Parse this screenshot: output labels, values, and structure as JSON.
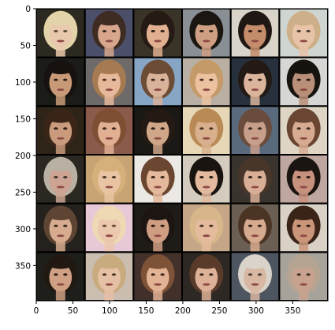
{
  "figure": {
    "kind": "image-grid-plot",
    "description_visible": false
  },
  "grid": {
    "rows": 6,
    "cols": 6,
    "separator_color": "#000000"
  },
  "axes": {
    "x_ticks": [
      "0",
      "50",
      "100",
      "150",
      "200",
      "250",
      "300",
      "350"
    ],
    "y_ticks": [
      "0",
      "50",
      "100",
      "150",
      "200",
      "250",
      "300",
      "350"
    ],
    "x_tick_values": [
      0,
      50,
      100,
      150,
      200,
      250,
      300,
      350
    ],
    "y_tick_values": [
      0,
      50,
      100,
      150,
      200,
      250,
      300,
      350
    ],
    "x_range": [
      0,
      398
    ],
    "y_range": [
      0,
      398
    ]
  },
  "tiles": [
    {
      "bg": "#2c2a20",
      "skin": "#e9c9ad",
      "hair": "#e2d3a8",
      "eye": "#5a4635"
    },
    {
      "bg": "#4b4f6a",
      "skin": "#d7a68c",
      "hair": "#3e2b22",
      "eye": "#3b2a22"
    },
    {
      "bg": "#3a3327",
      "skin": "#e0b090",
      "hair": "#251a14",
      "eye": "#2b1d15"
    },
    {
      "bg": "#8a8f95",
      "skin": "#cf9f83",
      "hair": "#1c1612",
      "eye": "#2a1e18"
    },
    {
      "bg": "#d8d4c9",
      "skin": "#c58c6c",
      "hair": "#1e1713",
      "eye": "#2a1a12"
    },
    {
      "bg": "#cfd6d2",
      "skin": "#e7c3a8",
      "hair": "#cdb08a",
      "eye": "#4a3a2e"
    },
    {
      "bg": "#1b1b17",
      "skin": "#c89a78",
      "hair": "#17120f",
      "eye": "#2c2018"
    },
    {
      "bg": "#6e6a6a",
      "skin": "#e7b99b",
      "hair": "#a77b52",
      "eye": "#4d3628"
    },
    {
      "bg": "#87a6c6",
      "skin": "#d9b29a",
      "hair": "#6d4c35",
      "eye": "#3c2c22"
    },
    {
      "bg": "#b9b0a3",
      "skin": "#ebc1a0",
      "hair": "#c49a68",
      "eye": "#4a3326"
    },
    {
      "bg": "#27313e",
      "skin": "#dbb49c",
      "hair": "#231915",
      "eye": "#2e211a"
    },
    {
      "bg": "#d6d7d4",
      "skin": "#b88f78",
      "hair": "#17130f",
      "eye": "#2a1d16"
    },
    {
      "bg": "#2e2418",
      "skin": "#c99a7b",
      "hair": "#3a2518",
      "eye": "#2e1e15"
    },
    {
      "bg": "#8a5a4b",
      "skin": "#e1b092",
      "hair": "#7e4f32",
      "eye": "#3e2a20"
    },
    {
      "bg": "#1a1916",
      "skin": "#d0a688",
      "hair": "#241913",
      "eye": "#2c1f17"
    },
    {
      "bg": "#e7d7b7",
      "skin": "#d8b08d",
      "hair": "#b98a55",
      "eye": "#4a3424"
    },
    {
      "bg": "#5a6a7e",
      "skin": "#c79e8a",
      "hair": "#6a4c3d",
      "eye": "#3b2a22"
    },
    {
      "bg": "#ded5c5",
      "skin": "#d7ab92",
      "hair": "#6a4632",
      "eye": "#3d2b20"
    },
    {
      "bg": "#2b2822",
      "skin": "#cda493",
      "hair": "#b8b0a3",
      "eye": "#3e322b"
    },
    {
      "bg": "#c8a374",
      "skin": "#e9c4a3",
      "hair": "#d6b07a",
      "eye": "#4e3828"
    },
    {
      "bg": "#ece9e4",
      "skin": "#e4b99c",
      "hair": "#6b4630",
      "eye": "#3b2819"
    },
    {
      "bg": "#d4ccbf",
      "skin": "#e2b99d",
      "hair": "#1a1410",
      "eye": "#2a1c14"
    },
    {
      "bg": "#39342d",
      "skin": "#d8ae96",
      "hair": "#48362a",
      "eye": "#33241c"
    },
    {
      "bg": "#bfa6a0",
      "skin": "#c7917e",
      "hair": "#1b1512",
      "eye": "#2a1c15"
    },
    {
      "bg": "#25211c",
      "skin": "#d7ab8f",
      "hair": "#5d4433",
      "eye": "#3a281d"
    },
    {
      "bg": "#e6c8d6",
      "skin": "#ebc7ad",
      "hair": "#efd9b4",
      "eye": "#6a4b3a"
    },
    {
      "bg": "#1f1c18",
      "skin": "#cf9e82",
      "hair": "#1c1511",
      "eye": "#2a1b13"
    },
    {
      "bg": "#c5a686",
      "skin": "#e4bb9c",
      "hair": "#d7b689",
      "eye": "#4a3626"
    },
    {
      "bg": "#6a5f52",
      "skin": "#d6aa8e",
      "hair": "#4c3424",
      "eye": "#33241a"
    },
    {
      "bg": "#d9d1c6",
      "skin": "#c99679",
      "hair": "#3a2418",
      "eye": "#2d1d14"
    },
    {
      "bg": "#1e1e1b",
      "skin": "#cfa083",
      "hair": "#211812",
      "eye": "#2b1c14"
    },
    {
      "bg": "#cbbdb0",
      "skin": "#e6c0a4",
      "hair": "#c9ab80",
      "eye": "#4a3627"
    },
    {
      "bg": "#42302a",
      "skin": "#e2b294",
      "hair": "#7e5236",
      "eye": "#3b271c"
    },
    {
      "bg": "#2e2825",
      "skin": "#dcb198",
      "hair": "#5a3b2a",
      "eye": "#35241a"
    },
    {
      "bg": "#4d5560",
      "skin": "#d8b7a3",
      "hair": "#d9d3ca",
      "eye": "#4b3d33"
    },
    {
      "bg": "#a8a39a",
      "skin": "#c8a28e",
      "hair": "#b5a492",
      "eye": "#3e3128"
    }
  ]
}
